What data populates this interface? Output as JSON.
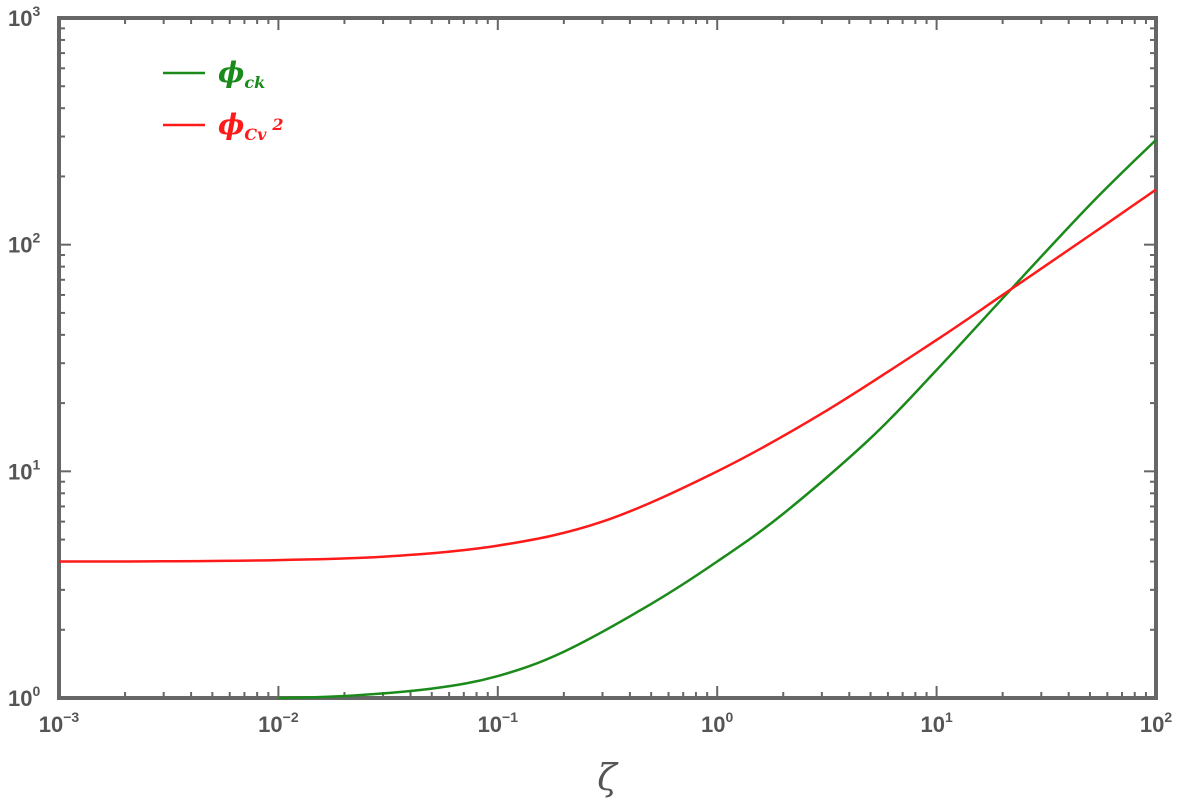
{
  "chart_data": {
    "type": "line",
    "xscale": "log",
    "yscale": "log",
    "xlim": [
      0.001,
      100
    ],
    "ylim": [
      1,
      1000
    ],
    "xlabel": "ζ",
    "ylabel": "",
    "title": "",
    "grid": false,
    "legend_position": "top-left",
    "x_ticks": [
      {
        "base": "10",
        "exp": "−3",
        "value": 0.001
      },
      {
        "base": "10",
        "exp": "−2",
        "value": 0.01
      },
      {
        "base": "10",
        "exp": "−1",
        "value": 0.1
      },
      {
        "base": "10",
        "exp": "0",
        "value": 1
      },
      {
        "base": "10",
        "exp": "1",
        "value": 10
      },
      {
        "base": "10",
        "exp": "2",
        "value": 100
      }
    ],
    "y_ticks": [
      {
        "base": "10",
        "exp": "0",
        "value": 1
      },
      {
        "base": "10",
        "exp": "1",
        "value": 10
      },
      {
        "base": "10",
        "exp": "2",
        "value": 100
      },
      {
        "base": "10",
        "exp": "3",
        "value": 1000
      }
    ],
    "series": [
      {
        "name": "ϕ",
        "name_sub": "ck",
        "name_sup": "",
        "color": "#1a8a1a",
        "x": [
          0.01,
          0.02,
          0.05,
          0.1,
          0.2,
          0.5,
          1,
          2,
          5,
          10,
          20,
          50,
          100
        ],
        "y": [
          1.0,
          1.02,
          1.1,
          1.25,
          1.6,
          2.6,
          4.0,
          6.5,
          14,
          28,
          58,
          150,
          290
        ]
      },
      {
        "name": "ϕ",
        "name_sub": "Cv",
        "name_sup": "2",
        "color": "#ff1a1a",
        "x": [
          0.001,
          0.003,
          0.01,
          0.03,
          0.1,
          0.3,
          1,
          3,
          10,
          20,
          50,
          100
        ],
        "y": [
          4.0,
          4.01,
          4.06,
          4.2,
          4.7,
          6.0,
          10,
          18,
          38,
          60,
          110,
          175
        ]
      }
    ]
  }
}
